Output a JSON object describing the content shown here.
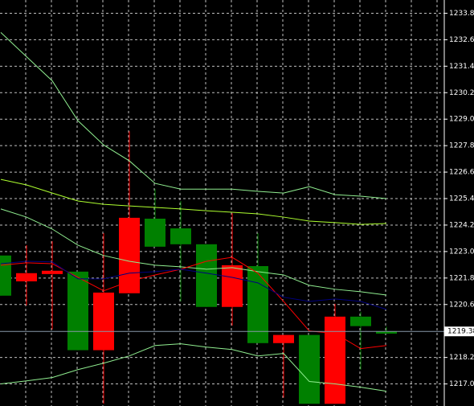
{
  "chart_data": {
    "type": "candlestick",
    "up_color": "#008000",
    "down_color": "#ff0000",
    "open": [
      1221.0,
      1222.02,
      1222.13,
      1218.53,
      1221.14,
      1224.53,
      1223.22,
      1223.33,
      1220.49,
      1222.38,
      1218.85,
      1219.22,
      1216.1,
      1220.05,
      1219.62,
      1219.28
    ],
    "high": [
      1222.82,
      1223.29,
      1223.47,
      1222.09,
      1223.83,
      1228.45,
      1225.83,
      1225.29,
      1223.33,
      1224.74,
      1223.83,
      1219.22,
      1219.22,
      1220.63,
      1220.27,
      1219.6
    ],
    "low": [
      1221.0,
      1220.56,
      1219.47,
      1218.53,
      1216.1,
      1221.11,
      1223.22,
      1220.74,
      1220.49,
      1219.65,
      1218.85,
      1216.38,
      1216.1,
      1216.1,
      1217.65,
      1219.28
    ],
    "close": [
      1222.82,
      1221.65,
      1221.98,
      1222.09,
      1218.53,
      1221.11,
      1224.49,
      1224.05,
      1223.33,
      1220.49,
      1222.34,
      1218.85,
      1219.22,
      1216.1,
      1220.05,
      1219.38
    ],
    "lines": [
      {
        "color": "#90ee90",
        "values": [
          1232.93,
          1231.83,
          1230.74,
          1228.93,
          1227.83,
          1227.11,
          1226.09,
          1225.83,
          1225.83,
          1225.83,
          1225.73,
          1225.65,
          1225.94,
          1225.58,
          1225.51,
          1225.4
        ]
      },
      {
        "color": "#adff2f",
        "values": [
          1226.27,
          1226.02,
          1225.65,
          1225.29,
          1225.14,
          1225.07,
          1225.0,
          1224.93,
          1224.85,
          1224.78,
          1224.71,
          1224.56,
          1224.38,
          1224.31,
          1224.23,
          1224.27
        ]
      },
      {
        "color": "#90ee90",
        "values": [
          1224.93,
          1224.56,
          1224.02,
          1223.29,
          1222.82,
          1222.56,
          1222.38,
          1222.31,
          1222.2,
          1222.27,
          1222.09,
          1221.94,
          1221.47,
          1221.29,
          1221.18,
          1221.03
        ]
      },
      {
        "color": "#90ee90",
        "values": [
          1217.0,
          1217.14,
          1217.29,
          1217.65,
          1217.94,
          1218.27,
          1218.74,
          1218.82,
          1218.67,
          1218.56,
          1218.27,
          1218.38,
          1217.11,
          1217.0,
          1216.85,
          1216.67
        ]
      },
      {
        "color": "#ff0000",
        "values": [
          1222.38,
          1222.49,
          1222.45,
          1221.83,
          1221.22,
          1221.65,
          1221.94,
          1222.2,
          1222.56,
          1222.74,
          1222.02,
          1220.74,
          1219.4,
          1219.29,
          1218.6,
          1218.74
        ]
      },
      {
        "color": "#000080",
        "values": [
          1222.45,
          1222.56,
          1222.53,
          1221.76,
          1221.76,
          1222.02,
          1222.09,
          1222.2,
          1222.02,
          1221.83,
          1221.58,
          1220.93,
          1220.74,
          1220.85,
          1220.74,
          1220.38
        ]
      }
    ],
    "current_price": 1219.38,
    "ylim": [
      1216.0,
      1234.4
    ],
    "yticks": [
      {
        "value": 1233.8,
        "label": "1233.80"
      },
      {
        "value": 1232.6,
        "label": "1232.60"
      },
      {
        "value": 1231.4,
        "label": "1231.40"
      },
      {
        "value": 1230.2,
        "label": "1230.20"
      },
      {
        "value": 1229.0,
        "label": "1229.00"
      },
      {
        "value": 1227.8,
        "label": "1227.80"
      },
      {
        "value": 1226.6,
        "label": "1226.60"
      },
      {
        "value": 1225.4,
        "label": "1225.40"
      },
      {
        "value": 1224.2,
        "label": "1224.20"
      },
      {
        "value": 1223.0,
        "label": "1223.00"
      },
      {
        "value": 1221.8,
        "label": "1221.80"
      },
      {
        "value": 1220.6,
        "label": "1220.60"
      },
      {
        "value": 1218.2,
        "label": "1218.20"
      },
      {
        "value": 1217.0,
        "label": "1217.00"
      }
    ],
    "grid": true
  }
}
